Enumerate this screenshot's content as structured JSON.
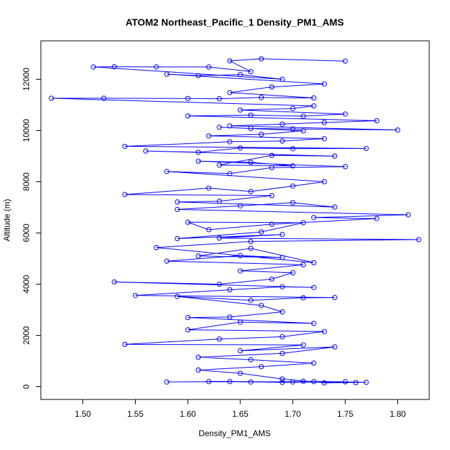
{
  "chart_data": {
    "type": "line",
    "title": "ATOM2 Northeast_Pacific_1 Density_PM1_AMS",
    "xlabel": "Density_PM1_AMS",
    "ylabel": "Altitude (m)",
    "xlim": [
      1.46,
      1.83
    ],
    "ylim": [
      -500,
      13500
    ],
    "x_ticks": [
      "1.50",
      "1.55",
      "1.60",
      "1.65",
      "1.70",
      "1.75",
      "1.80"
    ],
    "y_ticks": [
      "0",
      "2000",
      "4000",
      "6000",
      "8000",
      "10000",
      "12000"
    ],
    "markers": "open-circle",
    "series": [
      {
        "color": "#0000ff",
        "points": [
          [
            1.58,
            180
          ],
          [
            1.64,
            200
          ],
          [
            1.7,
            180
          ],
          [
            1.76,
            160
          ],
          [
            1.72,
            200
          ],
          [
            1.66,
            180
          ],
          [
            1.62,
            200
          ],
          [
            1.69,
            170
          ],
          [
            1.75,
            190
          ],
          [
            1.71,
            210
          ],
          [
            1.77,
            170
          ],
          [
            1.73,
            150
          ],
          [
            1.69,
            300
          ],
          [
            1.65,
            520
          ],
          [
            1.61,
            650
          ],
          [
            1.67,
            780
          ],
          [
            1.72,
            920
          ],
          [
            1.66,
            1050
          ],
          [
            1.61,
            1150
          ],
          [
            1.69,
            1300
          ],
          [
            1.74,
            1550
          ],
          [
            1.65,
            1400
          ],
          [
            1.71,
            1630
          ],
          [
            1.54,
            1650
          ],
          [
            1.63,
            1860
          ],
          [
            1.69,
            1950
          ],
          [
            1.73,
            2150
          ],
          [
            1.6,
            2220
          ],
          [
            1.65,
            2520
          ],
          [
            1.72,
            2470
          ],
          [
            1.6,
            2700
          ],
          [
            1.64,
            2720
          ],
          [
            1.69,
            2920
          ],
          [
            1.67,
            3170
          ],
          [
            1.59,
            3520
          ],
          [
            1.66,
            3370
          ],
          [
            1.71,
            3470
          ],
          [
            1.74,
            3480
          ],
          [
            1.55,
            3560
          ],
          [
            1.64,
            3780
          ],
          [
            1.69,
            3900
          ],
          [
            1.72,
            3870
          ],
          [
            1.53,
            4090
          ],
          [
            1.63,
            4000
          ],
          [
            1.68,
            4200
          ],
          [
            1.7,
            4450
          ],
          [
            1.65,
            4520
          ],
          [
            1.71,
            4760
          ],
          [
            1.58,
            4900
          ],
          [
            1.65,
            5120
          ],
          [
            1.69,
            5040
          ],
          [
            1.61,
            5100
          ],
          [
            1.66,
            5400
          ],
          [
            1.72,
            4840
          ],
          [
            1.57,
            5430
          ],
          [
            1.66,
            5670
          ],
          [
            1.82,
            5740
          ],
          [
            1.63,
            5800
          ],
          [
            1.69,
            5940
          ],
          [
            1.59,
            5780
          ],
          [
            1.67,
            6040
          ],
          [
            1.71,
            6400
          ],
          [
            1.6,
            6420
          ],
          [
            1.62,
            6130
          ],
          [
            1.68,
            6340
          ],
          [
            1.78,
            6560
          ],
          [
            1.72,
            6600
          ],
          [
            1.81,
            6710
          ],
          [
            1.59,
            6920
          ],
          [
            1.65,
            7060
          ],
          [
            1.7,
            7180
          ],
          [
            1.74,
            7010
          ],
          [
            1.59,
            7210
          ],
          [
            1.63,
            7240
          ],
          [
            1.68,
            7460
          ],
          [
            1.54,
            7500
          ],
          [
            1.62,
            7750
          ],
          [
            1.66,
            7620
          ],
          [
            1.7,
            7830
          ],
          [
            1.73,
            8000
          ],
          [
            1.58,
            8400
          ],
          [
            1.64,
            8320
          ],
          [
            1.68,
            8550
          ],
          [
            1.75,
            8590
          ],
          [
            1.61,
            8800
          ],
          [
            1.66,
            8760
          ],
          [
            1.7,
            8620
          ],
          [
            1.63,
            8650
          ],
          [
            1.68,
            9030
          ],
          [
            1.74,
            9000
          ],
          [
            1.56,
            9200
          ],
          [
            1.61,
            9150
          ],
          [
            1.65,
            9320
          ],
          [
            1.7,
            9290
          ],
          [
            1.77,
            9300
          ],
          [
            1.54,
            9380
          ],
          [
            1.64,
            9560
          ],
          [
            1.69,
            9590
          ],
          [
            1.73,
            9680
          ],
          [
            1.62,
            9790
          ],
          [
            1.67,
            9850
          ],
          [
            1.71,
            9990
          ],
          [
            1.63,
            10130
          ],
          [
            1.66,
            10080
          ],
          [
            1.7,
            10060
          ],
          [
            1.8,
            10020
          ],
          [
            1.64,
            10180
          ],
          [
            1.69,
            10250
          ],
          [
            1.73,
            10310
          ],
          [
            1.78,
            10380
          ],
          [
            1.6,
            10570
          ],
          [
            1.66,
            10600
          ],
          [
            1.71,
            10560
          ],
          [
            1.75,
            10640
          ],
          [
            1.65,
            10800
          ],
          [
            1.7,
            10860
          ],
          [
            1.72,
            10960
          ],
          [
            1.47,
            11260
          ],
          [
            1.52,
            11260
          ],
          [
            1.6,
            11250
          ],
          [
            1.63,
            11240
          ],
          [
            1.67,
            11290
          ],
          [
            1.72,
            11270
          ],
          [
            1.64,
            11480
          ],
          [
            1.68,
            11700
          ],
          [
            1.73,
            11820
          ],
          [
            1.58,
            12200
          ],
          [
            1.61,
            12140
          ],
          [
            1.65,
            12180
          ],
          [
            1.69,
            12000
          ],
          [
            1.51,
            12480
          ],
          [
            1.53,
            12490
          ],
          [
            1.57,
            12480
          ],
          [
            1.62,
            12480
          ],
          [
            1.66,
            12300
          ],
          [
            1.64,
            12720
          ],
          [
            1.67,
            12800
          ],
          [
            1.75,
            12710
          ]
        ]
      }
    ]
  }
}
